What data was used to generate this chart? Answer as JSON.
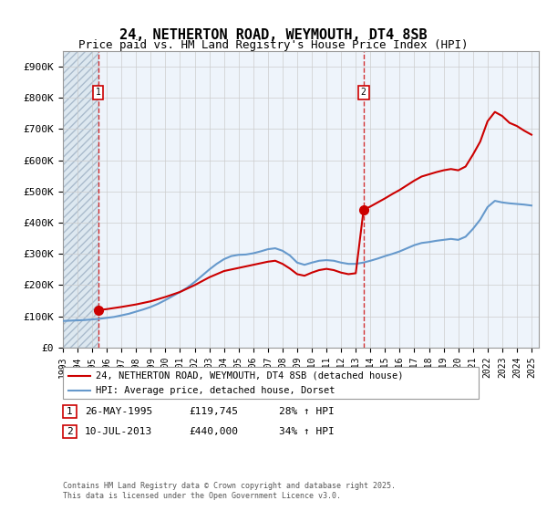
{
  "title": "24, NETHERTON ROAD, WEYMOUTH, DT4 8SB",
  "subtitle": "Price paid vs. HM Land Registry's House Price Index (HPI)",
  "legend_line1": "24, NETHERTON ROAD, WEYMOUTH, DT4 8SB (detached house)",
  "legend_line2": "HPI: Average price, detached house, Dorset",
  "footnote": "Contains HM Land Registry data © Crown copyright and database right 2025.\nThis data is licensed under the Open Government Licence v3.0.",
  "marker1_label": "1",
  "marker1_date": "26-MAY-1995",
  "marker1_price": "£119,745",
  "marker1_hpi": "28% ↑ HPI",
  "marker2_label": "2",
  "marker2_date": "10-JUL-2013",
  "marker2_price": "£440,000",
  "marker2_hpi": "34% ↑ HPI",
  "red_color": "#cc0000",
  "blue_color": "#6699cc",
  "hatch_color": "#cccccc",
  "grid_color": "#cccccc",
  "bg_color": "#eef4fb",
  "hatch_bg": "#dde8f0",
  "ylim": [
    0,
    950000
  ],
  "yticks": [
    0,
    100000,
    200000,
    300000,
    400000,
    500000,
    600000,
    700000,
    800000,
    900000
  ],
  "xlim_start": 1993.0,
  "xlim_end": 2025.5,
  "marker1_x": 1995.4,
  "marker1_y": 119745,
  "marker2_x": 2013.53,
  "marker2_y": 440000,
  "sale1_vline_x": 1995.4,
  "sale2_vline_x": 2013.53,
  "hpi_line": {
    "x": [
      1993,
      1993.5,
      1994,
      1994.5,
      1995,
      1995.5,
      1996,
      1996.5,
      1997,
      1997.5,
      1998,
      1998.5,
      1999,
      1999.5,
      2000,
      2000.5,
      2001,
      2001.5,
      2002,
      2002.5,
      2003,
      2003.5,
      2004,
      2004.5,
      2005,
      2005.5,
      2006,
      2006.5,
      2007,
      2007.5,
      2008,
      2008.5,
      2009,
      2009.5,
      2010,
      2010.5,
      2011,
      2011.5,
      2012,
      2012.5,
      2013,
      2013.5,
      2014,
      2014.5,
      2015,
      2015.5,
      2016,
      2016.5,
      2017,
      2017.5,
      2018,
      2018.5,
      2019,
      2019.5,
      2020,
      2020.5,
      2021,
      2021.5,
      2022,
      2022.5,
      2023,
      2023.5,
      2024,
      2024.5,
      2025
    ],
    "y": [
      85000,
      86000,
      87000,
      88000,
      90000,
      92000,
      95000,
      98000,
      103000,
      108000,
      115000,
      122000,
      130000,
      140000,
      152000,
      165000,
      178000,
      192000,
      210000,
      230000,
      250000,
      268000,
      283000,
      293000,
      297000,
      298000,
      302000,
      308000,
      315000,
      318000,
      310000,
      295000,
      272000,
      265000,
      272000,
      278000,
      280000,
      278000,
      272000,
      268000,
      268000,
      272000,
      278000,
      285000,
      293000,
      300000,
      308000,
      318000,
      328000,
      335000,
      338000,
      342000,
      345000,
      348000,
      345000,
      355000,
      380000,
      410000,
      450000,
      470000,
      465000,
      462000,
      460000,
      458000,
      455000
    ]
  },
  "red_line": {
    "x": [
      1995.4,
      1996,
      1997,
      1998,
      1999,
      2000,
      2001,
      2002,
      2003,
      2004,
      2005,
      2006,
      2007,
      2007.5,
      2008,
      2008.5,
      2009,
      2009.5,
      2010,
      2010.5,
      2011,
      2011.5,
      2012,
      2012.5,
      2013,
      2013.53,
      2014,
      2014.5,
      2015,
      2015.5,
      2016,
      2016.5,
      2017,
      2017.5,
      2018,
      2018.5,
      2019,
      2019.5,
      2020,
      2020.5,
      2021,
      2021.5,
      2022,
      2022.5,
      2023,
      2023.5,
      2024,
      2024.5,
      2025
    ],
    "y": [
      119745,
      123000,
      130000,
      138000,
      148000,
      162000,
      178000,
      200000,
      225000,
      245000,
      255000,
      265000,
      275000,
      278000,
      268000,
      253000,
      235000,
      230000,
      240000,
      248000,
      252000,
      248000,
      240000,
      235000,
      238000,
      440000,
      452000,
      465000,
      478000,
      492000,
      505000,
      520000,
      535000,
      548000,
      555000,
      562000,
      568000,
      572000,
      568000,
      580000,
      618000,
      660000,
      725000,
      755000,
      742000,
      720000,
      710000,
      695000,
      682000
    ]
  }
}
